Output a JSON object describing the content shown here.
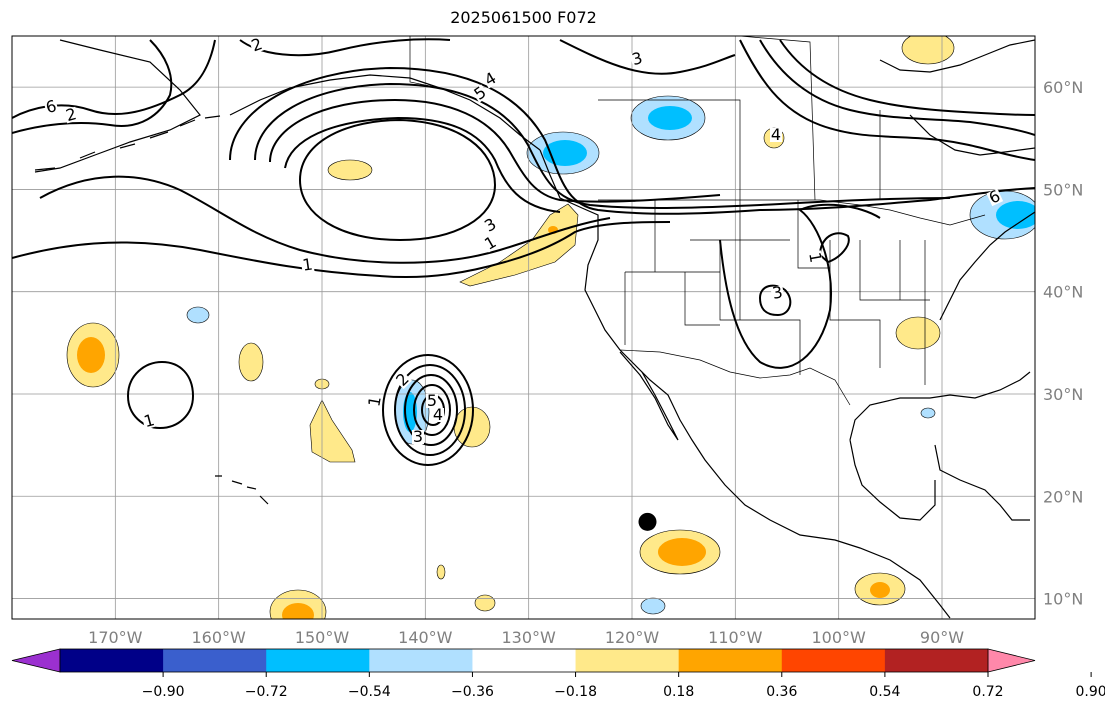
{
  "title": "2025061500 F072",
  "map": {
    "projection": "PlateCarree",
    "lon_range": [
      -180,
      -81
    ],
    "lat_range": [
      8,
      65
    ],
    "gridlines": true,
    "lon_ticks": [
      "170°W",
      "160°W",
      "150°W",
      "140°W",
      "130°W",
      "120°W",
      "110°W",
      "100°W",
      "90°W"
    ],
    "lat_ticks": [
      "10°N",
      "20°N",
      "30°N",
      "40°N",
      "50°N",
      "60°N"
    ],
    "features": [
      "coastlines",
      "country-borders",
      "us-state-borders"
    ],
    "marker": {
      "label": "black-dot",
      "lon": -118.5,
      "lat": 17.5
    }
  },
  "contours": {
    "color": "#000000",
    "labels": [
      "1",
      "2",
      "3",
      "4",
      "5",
      "6",
      "1",
      "2",
      "3",
      "4",
      "5",
      "6",
      "1",
      "3",
      "1",
      "2",
      "3",
      "4",
      "1"
    ]
  },
  "colorbar": {
    "orientation": "horizontal",
    "extend": "both",
    "tick_labels": [
      "−0.90",
      "−0.72",
      "−0.54",
      "−0.36",
      "−0.18",
      "0.18",
      "0.36",
      "0.54",
      "0.72",
      "0.90"
    ],
    "colors": [
      "#9b30d0",
      "#000088",
      "#3a5fcd",
      "#00bfff",
      "#b0e0ff",
      "#ffffff",
      "#ffe98a",
      "#ffa500",
      "#ff4500",
      "#b22222",
      "#ff88aa"
    ]
  }
}
